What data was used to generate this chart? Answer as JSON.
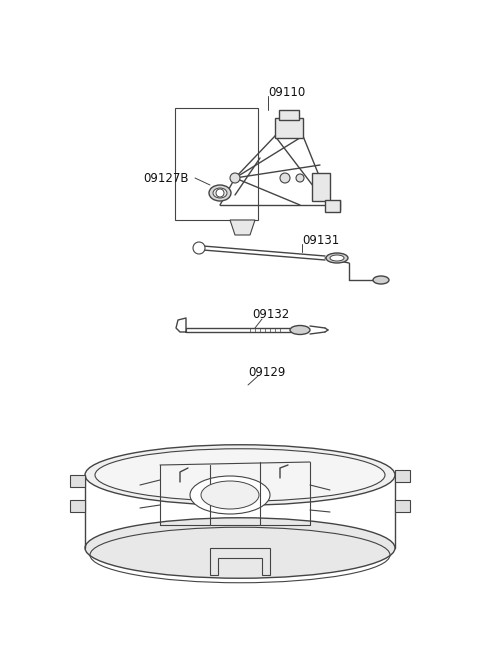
{
  "bg_color": "#ffffff",
  "line_color": "#444444",
  "label_color": "#111111",
  "fig_width": 4.8,
  "fig_height": 6.55,
  "dpi": 100,
  "font_size": 8.5
}
